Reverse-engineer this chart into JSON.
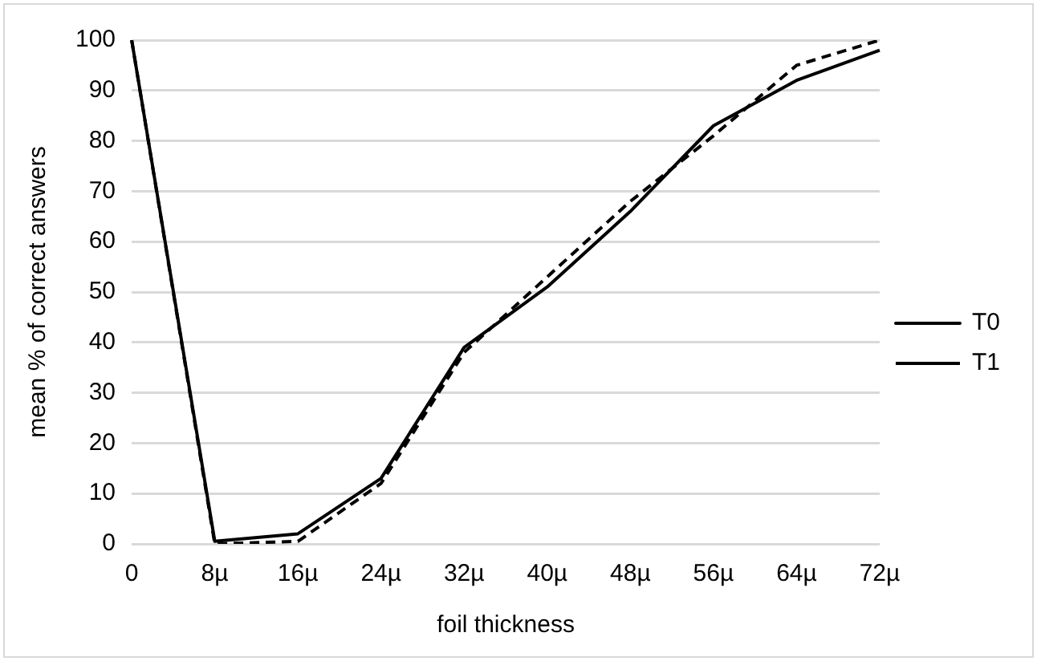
{
  "chart_data": {
    "type": "line",
    "xlabel": "foil thickness",
    "ylabel": "mean % of correct answers",
    "categories": [
      "0",
      "8µ",
      "16µ",
      "24µ",
      "32µ",
      "40µ",
      "48µ",
      "56µ",
      "64µ",
      "72µ"
    ],
    "series": [
      {
        "name": "T0",
        "color": "#000000",
        "line_style": "solid",
        "values": [
          100,
          0.5,
          2,
          13,
          39,
          51,
          66,
          83,
          92,
          98
        ]
      },
      {
        "name": "T1",
        "color": "#000000",
        "line_style": "dashed",
        "values": [
          100,
          0,
          0.5,
          12,
          38,
          53,
          68,
          81,
          95,
          100
        ]
      }
    ],
    "ylim": [
      0,
      100
    ],
    "yticks": [
      0,
      10,
      20,
      30,
      40,
      50,
      60,
      70,
      80,
      90,
      100
    ],
    "grid": "y",
    "legend": "right",
    "marker": "none"
  }
}
